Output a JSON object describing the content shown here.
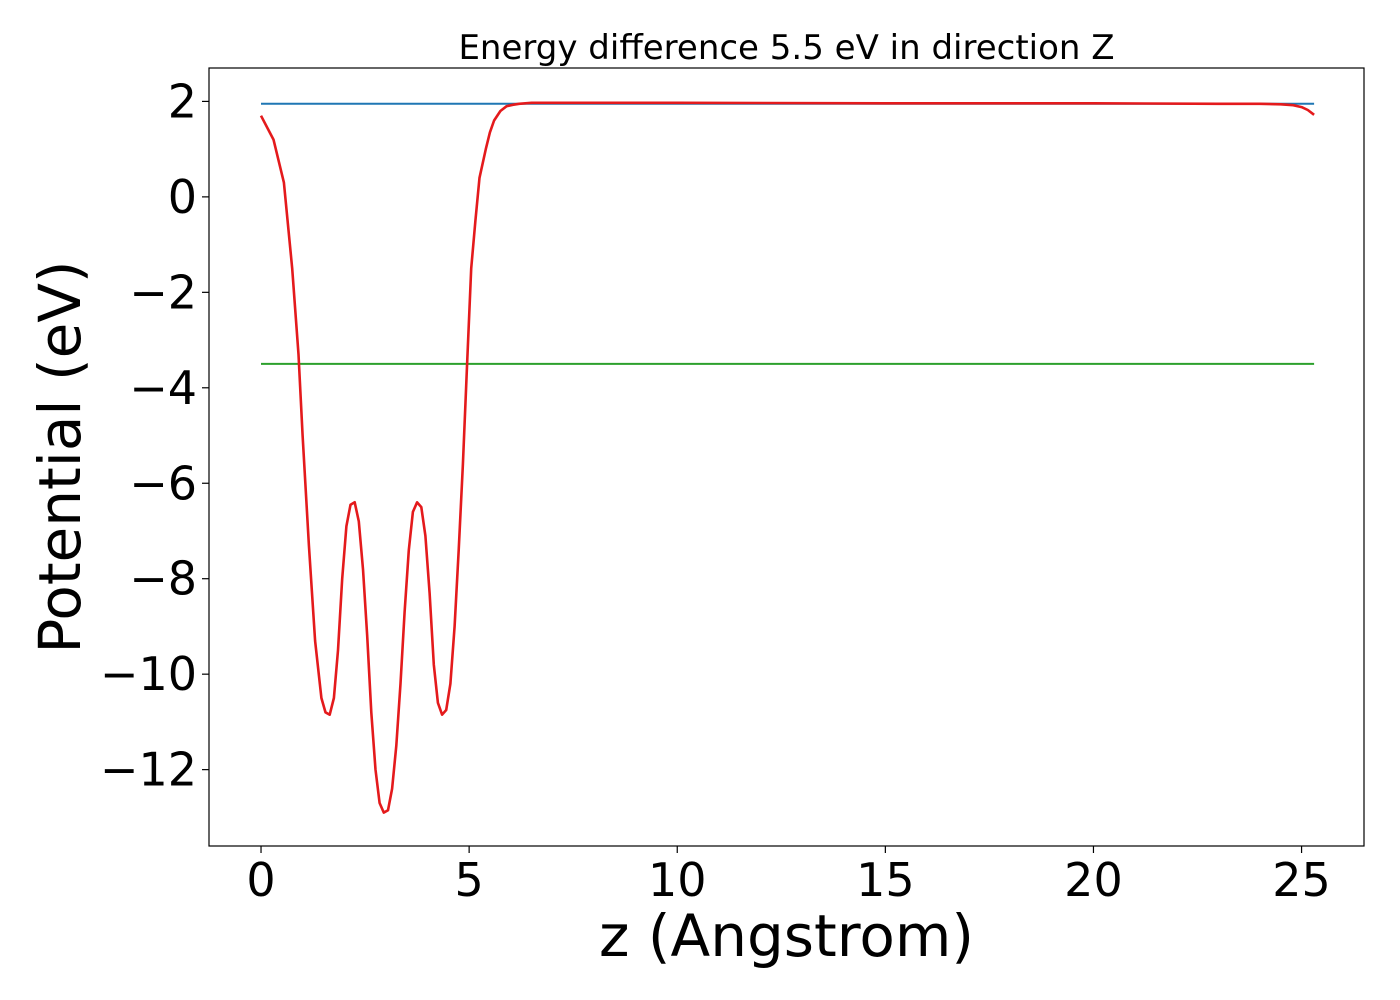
{
  "chart_data": {
    "type": "line",
    "title": "Energy difference 5.5 eV in direction Z",
    "xlabel": "z (Angstrom)",
    "ylabel": "Potential (eV)",
    "xlim": [
      -1.25,
      26.5
    ],
    "ylim": [
      -13.6,
      2.7
    ],
    "xticks": [
      0,
      5,
      10,
      15,
      20,
      25
    ],
    "xtick_labels": [
      "0",
      "5",
      "10",
      "15",
      "20",
      "25"
    ],
    "yticks": [
      2,
      0,
      -2,
      -4,
      -6,
      -8,
      -10,
      -12
    ],
    "ytick_labels": [
      "2",
      "0",
      "−2",
      "−4",
      "−6",
      "−8",
      "−10",
      "−12"
    ],
    "grid": false,
    "legend": "none",
    "series": [
      {
        "color": "#1f77b4",
        "x": [
          0,
          25.3
        ],
        "y": [
          1.95,
          1.95
        ]
      },
      {
        "color": "#2ca02c",
        "x": [
          0,
          25.3
        ],
        "y": [
          -3.5,
          -3.5
        ]
      },
      {
        "color": "#e41a1c",
        "x": [
          0,
          0.3,
          0.55,
          0.75,
          0.9,
          1.0,
          1.15,
          1.3,
          1.45,
          1.55,
          1.65,
          1.75,
          1.85,
          1.95,
          2.05,
          2.15,
          2.25,
          2.35,
          2.45,
          2.55,
          2.65,
          2.75,
          2.85,
          2.95,
          3.05,
          3.15,
          3.25,
          3.35,
          3.45,
          3.55,
          3.65,
          3.75,
          3.85,
          3.95,
          4.05,
          4.15,
          4.25,
          4.35,
          4.45,
          4.55,
          4.65,
          4.75,
          4.85,
          4.95,
          5.05,
          5.15,
          5.25,
          5.4,
          5.5,
          5.6,
          5.75,
          5.9,
          6.05,
          6.2,
          6.35,
          6.5,
          6.7,
          7.0,
          7.5,
          8.5,
          10,
          15,
          20,
          23,
          24,
          24.5,
          24.8,
          25.0,
          25.15,
          25.3
        ],
        "y": [
          1.7,
          1.2,
          0.3,
          -1.5,
          -3.3,
          -5.0,
          -7.3,
          -9.3,
          -10.5,
          -10.8,
          -10.85,
          -10.5,
          -9.5,
          -8.0,
          -6.9,
          -6.45,
          -6.4,
          -6.8,
          -7.8,
          -9.2,
          -10.8,
          -12.0,
          -12.7,
          -12.9,
          -12.85,
          -12.4,
          -11.5,
          -10.2,
          -8.7,
          -7.4,
          -6.6,
          -6.4,
          -6.5,
          -7.1,
          -8.3,
          -9.8,
          -10.6,
          -10.85,
          -10.75,
          -10.2,
          -9.0,
          -7.4,
          -5.6,
          -3.5,
          -1.5,
          -0.5,
          0.4,
          1.0,
          1.35,
          1.6,
          1.8,
          1.9,
          1.93,
          1.95,
          1.96,
          1.97,
          1.97,
          1.97,
          1.97,
          1.97,
          1.97,
          1.96,
          1.96,
          1.95,
          1.95,
          1.94,
          1.92,
          1.88,
          1.82,
          1.72
        ]
      }
    ]
  }
}
